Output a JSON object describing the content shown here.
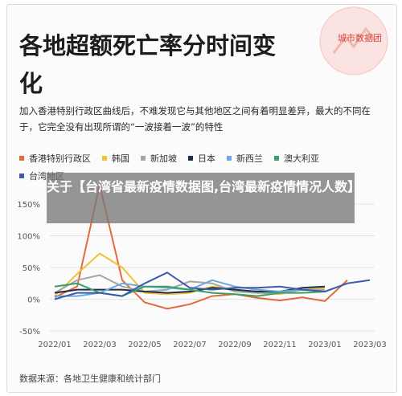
{
  "title": "各地超额死亡率分时间变化",
  "subtitle": "加入香港特别行政区曲线后，不难发现它与其他地区之间有着明显差异，最大的不同在于，它完全没有出现所谓的“一波接着一波”的特性",
  "logo_text": "城市数据团",
  "overlay_text": "关于【台湾省最新疫情数据图,台湾最新疫情情况人数】",
  "source": "数据来源：各地卫生健康和统计部门",
  "chart_data": {
    "type": "line",
    "x": [
      "2022/01",
      "2022/02",
      "2022/03",
      "2022/04",
      "2022/05",
      "2022/06",
      "2022/07",
      "2022/08",
      "2022/09",
      "2022/10",
      "2022/11",
      "2022/12",
      "2023/01",
      "2023/02",
      "2023/03"
    ],
    "xticks": [
      "2022/01",
      "2022/03",
      "2022/05",
      "2022/07",
      "2022/09",
      "2022/11",
      "2023/01",
      "2023/03"
    ],
    "yticks": [
      "150%",
      "100%",
      "50%",
      "0%",
      "-50%"
    ],
    "ylim": [
      -50,
      150
    ],
    "grid": true,
    "legend_position": "top",
    "series": [
      {
        "name": "香港特别行政区",
        "color": "#e26a3c",
        "values": [
          3,
          20,
          180,
          30,
          -5,
          -15,
          -8,
          5,
          8,
          2,
          -2,
          3,
          -3,
          30,
          null
        ]
      },
      {
        "name": "韩国",
        "color": "#f1c232",
        "values": [
          5,
          40,
          72,
          50,
          10,
          8,
          10,
          20,
          15,
          10,
          8,
          15,
          18,
          null,
          null
        ]
      },
      {
        "name": "新加坡",
        "color": "#a5a5a5",
        "values": [
          10,
          30,
          38,
          20,
          12,
          15,
          28,
          25,
          12,
          10,
          10,
          15,
          15,
          null,
          null
        ]
      },
      {
        "name": "日本",
        "color": "#1f2e4d",
        "values": [
          10,
          15,
          15,
          15,
          12,
          10,
          12,
          18,
          15,
          12,
          12,
          18,
          20,
          null,
          null
        ]
      },
      {
        "name": "新西兰",
        "color": "#6fa8dc",
        "values": [
          5,
          5,
          10,
          25,
          20,
          18,
          15,
          30,
          20,
          15,
          12,
          15,
          12,
          null,
          null
        ]
      },
      {
        "name": "澳大利亚",
        "color": "#38a169",
        "values": [
          20,
          25,
          10,
          5,
          20,
          20,
          15,
          10,
          8,
          5,
          10,
          10,
          12,
          null,
          null
        ]
      },
      {
        "name": "台湾地区",
        "color": "#3d5ca6",
        "values": [
          0,
          10,
          10,
          5,
          25,
          42,
          18,
          15,
          18,
          18,
          20,
          15,
          12,
          25,
          30
        ]
      }
    ]
  }
}
